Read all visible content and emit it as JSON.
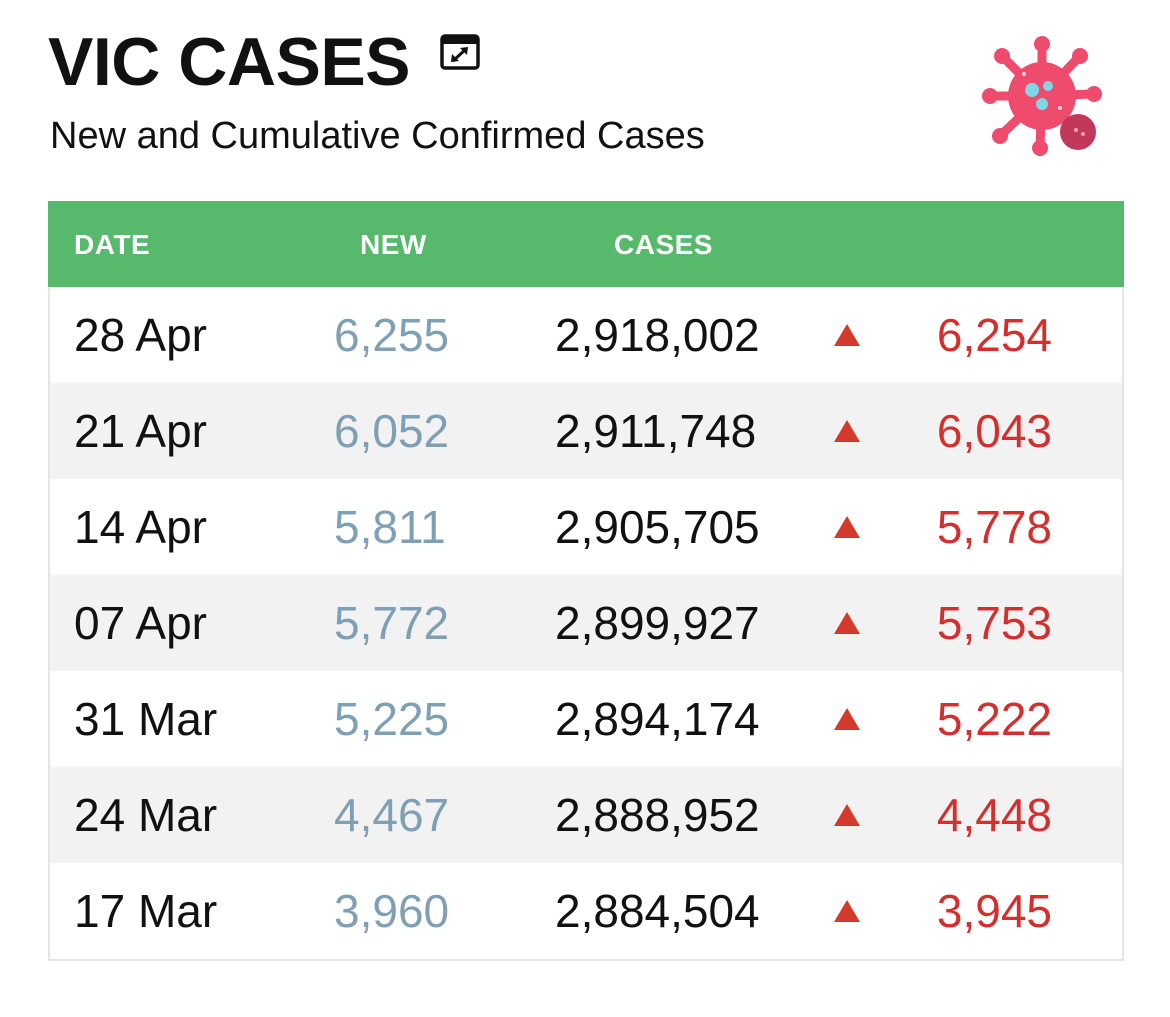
{
  "header": {
    "title": "VIC CASES",
    "subtitle": "New and Cumulative Confirmed Cases",
    "expand_icon": "expand-icon",
    "logo_icon": "virus-icon"
  },
  "colors": {
    "header_bg": "#57b96c",
    "new_text": "#7f9fb5",
    "change_text": "#d32f2f",
    "arrow": "#d33a2c",
    "alt_row": "#f2f2f2",
    "virus": "#ef4b6c"
  },
  "table": {
    "columns": [
      "DATE",
      "NEW",
      "CASES",
      ""
    ],
    "rows": [
      {
        "date": "28 Apr",
        "new": "6,255",
        "cases": "2,918,002",
        "trend": "up",
        "change": "6,254"
      },
      {
        "date": "21 Apr",
        "new": "6,052",
        "cases": "2,911,748",
        "trend": "up",
        "change": "6,043"
      },
      {
        "date": "14 Apr",
        "new": "5,811",
        "cases": "2,905,705",
        "trend": "up",
        "change": "5,778"
      },
      {
        "date": "07 Apr",
        "new": "5,772",
        "cases": "2,899,927",
        "trend": "up",
        "change": "5,753"
      },
      {
        "date": "31 Mar",
        "new": "5,225",
        "cases": "2,894,174",
        "trend": "up",
        "change": "5,222"
      },
      {
        "date": "24 Mar",
        "new": "4,467",
        "cases": "2,888,952",
        "trend": "up",
        "change": "4,448"
      },
      {
        "date": "17 Mar",
        "new": "3,960",
        "cases": "2,884,504",
        "trend": "up",
        "change": "3,945"
      }
    ]
  }
}
